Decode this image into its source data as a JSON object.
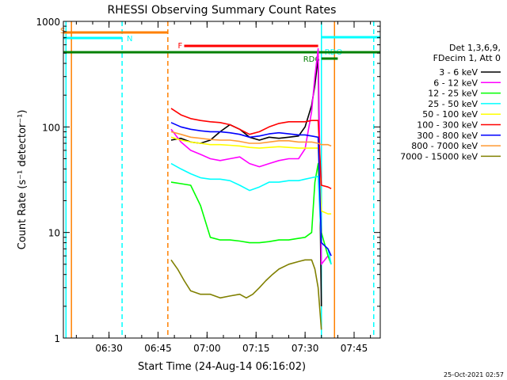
{
  "chart_data": {
    "type": "line",
    "title": "RHESSI Observing Summary Count Rates",
    "xlabel": "Start Time (24-Aug-14 06:16:02)",
    "ylabel": "Count Rate (s⁻¹ detector⁻¹)",
    "yscale": "log",
    "xlim": [
      "06:16:02",
      "07:53:00"
    ],
    "ylim": [
      1,
      1000
    ],
    "x_ticks": [
      "06:30",
      "06:45",
      "07:00",
      "07:15",
      "07:30",
      "07:45"
    ],
    "y_ticks": [
      "1",
      "10",
      "100",
      "1000"
    ],
    "legend_header": [
      "Det 1,3,6,9,",
      "FDecim 1, Att 0"
    ],
    "legend_position": "right",
    "footer": "25-Oct-2021 02:57",
    "series": [
      {
        "name": "3 - 6 keV",
        "color": "#000000",
        "x": [
          "06:49",
          "06:52",
          "06:55",
          "06:58",
          "07:01",
          "07:04",
          "07:07",
          "07:10",
          "07:13",
          "07:16",
          "07:19",
          "07:22",
          "07:25",
          "07:28",
          "07:30",
          "07:32",
          "07:33",
          "07:34",
          "07:35"
        ],
        "y": [
          75,
          78,
          72,
          70,
          75,
          90,
          105,
          95,
          80,
          75,
          80,
          78,
          80,
          82,
          100,
          160,
          250,
          450,
          2
        ]
      },
      {
        "name": "6 - 12 keV",
        "color": "#ff00ff",
        "x": [
          "06:49",
          "06:52",
          "06:55",
          "06:58",
          "07:01",
          "07:04",
          "07:07",
          "07:10",
          "07:13",
          "07:16",
          "07:19",
          "07:22",
          "07:25",
          "07:28",
          "07:30",
          "07:32",
          "07:33",
          "07:34",
          "07:35",
          "07:37"
        ],
        "y": [
          95,
          72,
          60,
          55,
          50,
          48,
          50,
          52,
          45,
          42,
          45,
          48,
          50,
          50,
          62,
          140,
          300,
          550,
          5,
          6
        ]
      },
      {
        "name": "12 - 25 keV",
        "color": "#00ff00",
        "x": [
          "06:49",
          "06:52",
          "06:55",
          "06:58",
          "07:01",
          "07:04",
          "07:07",
          "07:10",
          "07:13",
          "07:16",
          "07:19",
          "07:22",
          "07:25",
          "07:28",
          "07:30",
          "07:32",
          "07:33",
          "07:34",
          "07:35",
          "07:37",
          "07:38"
        ],
        "y": [
          30,
          29,
          28,
          18,
          9,
          8.5,
          8.5,
          8.3,
          8,
          8,
          8.2,
          8.5,
          8.5,
          8.8,
          9,
          10,
          30,
          45,
          10,
          6,
          5
        ]
      },
      {
        "name": "25 - 50 keV",
        "color": "#00ffff",
        "x": [
          "06:49",
          "06:52",
          "06:55",
          "06:58",
          "07:01",
          "07:04",
          "07:07",
          "07:10",
          "07:13",
          "07:16",
          "07:19",
          "07:22",
          "07:25",
          "07:28",
          "07:30",
          "07:32",
          "07:34",
          "07:35",
          "07:37",
          "07:38"
        ],
        "y": [
          45,
          40,
          36,
          33,
          32,
          32,
          31,
          28,
          25,
          27,
          30,
          30,
          31,
          31,
          32,
          33,
          34,
          8,
          7,
          5
        ]
      },
      {
        "name": "50 - 100 keV",
        "color": "#ffff00",
        "x": [
          "06:49",
          "06:52",
          "06:55",
          "06:58",
          "07:01",
          "07:04",
          "07:07",
          "07:10",
          "07:13",
          "07:16",
          "07:19",
          "07:22",
          "07:25",
          "07:28",
          "07:30",
          "07:32",
          "07:34",
          "07:35",
          "07:37",
          "07:38"
        ],
        "y": [
          80,
          75,
          72,
          70,
          68,
          68,
          67,
          66,
          64,
          63,
          64,
          65,
          64,
          63,
          63,
          63,
          63,
          16,
          15,
          15
        ]
      },
      {
        "name": "100 - 300 keV",
        "color": "#ff0000",
        "x": [
          "06:49",
          "06:52",
          "06:55",
          "06:58",
          "07:01",
          "07:04",
          "07:07",
          "07:10",
          "07:13",
          "07:16",
          "07:19",
          "07:22",
          "07:25",
          "07:28",
          "07:30",
          "07:32",
          "07:34",
          "07:35",
          "07:37",
          "07:38"
        ],
        "y": [
          150,
          130,
          120,
          115,
          112,
          110,
          105,
          95,
          85,
          90,
          100,
          108,
          112,
          112,
          112,
          115,
          115,
          28,
          27,
          26
        ]
      },
      {
        "name": "300 - 800 keV",
        "color": "#0000ff",
        "x": [
          "06:49",
          "06:52",
          "06:55",
          "06:58",
          "07:01",
          "07:04",
          "07:07",
          "07:10",
          "07:13",
          "07:16",
          "07:19",
          "07:22",
          "07:25",
          "07:28",
          "07:30",
          "07:32",
          "07:34",
          "07:35",
          "07:37",
          "07:38"
        ],
        "y": [
          110,
          100,
          95,
          92,
          90,
          90,
          88,
          85,
          80,
          82,
          86,
          88,
          86,
          84,
          84,
          82,
          80,
          8,
          7,
          6
        ]
      },
      {
        "name": "800 - 7000 keV",
        "color": "#ff9933",
        "x": [
          "06:49",
          "06:52",
          "06:55",
          "06:58",
          "07:01",
          "07:04",
          "07:07",
          "07:10",
          "07:13",
          "07:16",
          "07:19",
          "07:22",
          "07:25",
          "07:28",
          "07:30",
          "07:32",
          "07:34",
          "07:35",
          "07:37",
          "07:38"
        ],
        "y": [
          90,
          85,
          80,
          78,
          76,
          75,
          75,
          73,
          70,
          70,
          72,
          74,
          74,
          72,
          72,
          72,
          70,
          68,
          68,
          66
        ]
      },
      {
        "name": "7000 - 15000 keV",
        "color": "#808000",
        "x": [
          "06:49",
          "06:51",
          "06:53",
          "06:55",
          "06:58",
          "07:01",
          "07:04",
          "07:07",
          "07:10",
          "07:12",
          "07:14",
          "07:16",
          "07:18",
          "07:20",
          "07:22",
          "07:25",
          "07:28",
          "07:30",
          "07:32",
          "07:33",
          "07:34",
          "07:35"
        ],
        "y": [
          5.5,
          4.5,
          3.5,
          2.8,
          2.6,
          2.6,
          2.4,
          2.5,
          2.6,
          2.4,
          2.6,
          3,
          3.5,
          4,
          4.5,
          5,
          5.3,
          5.5,
          5.5,
          4.5,
          3,
          1.2
        ]
      }
    ],
    "flag_bars": [
      {
        "label": "S",
        "color": "#ff8000",
        "start": "06:16:02",
        "end": "06:48"
      },
      {
        "label": "N",
        "color": "#00ffff",
        "start": "06:16:02",
        "end": "06:34"
      },
      {
        "label": "F",
        "color": "#ff0000",
        "start": "06:53",
        "end": "07:34"
      },
      {
        "label": "RDO",
        "color": "#00ffff",
        "start": "07:35",
        "end": "07:53:00"
      },
      {
        "label": "RD6",
        "color": "#008000",
        "start": "07:35",
        "end": "07:40"
      },
      {
        "label": "",
        "color": "#008000",
        "start": "06:16:02",
        "end": "07:53:00"
      }
    ],
    "vertical_lines": [
      {
        "time": "06:16:50",
        "color": "#00ffff",
        "style": "solid"
      },
      {
        "time": "06:18:30",
        "color": "#ff8000",
        "style": "solid"
      },
      {
        "time": "06:34",
        "color": "#00ffff",
        "style": "dashed"
      },
      {
        "time": "06:48",
        "color": "#ff8000",
        "style": "dashed"
      },
      {
        "time": "07:35",
        "color": "#00ffff",
        "style": "solid"
      },
      {
        "time": "07:39",
        "color": "#ff8000",
        "style": "solid"
      },
      {
        "time": "07:51",
        "color": "#00ffff",
        "style": "dashed"
      }
    ]
  }
}
